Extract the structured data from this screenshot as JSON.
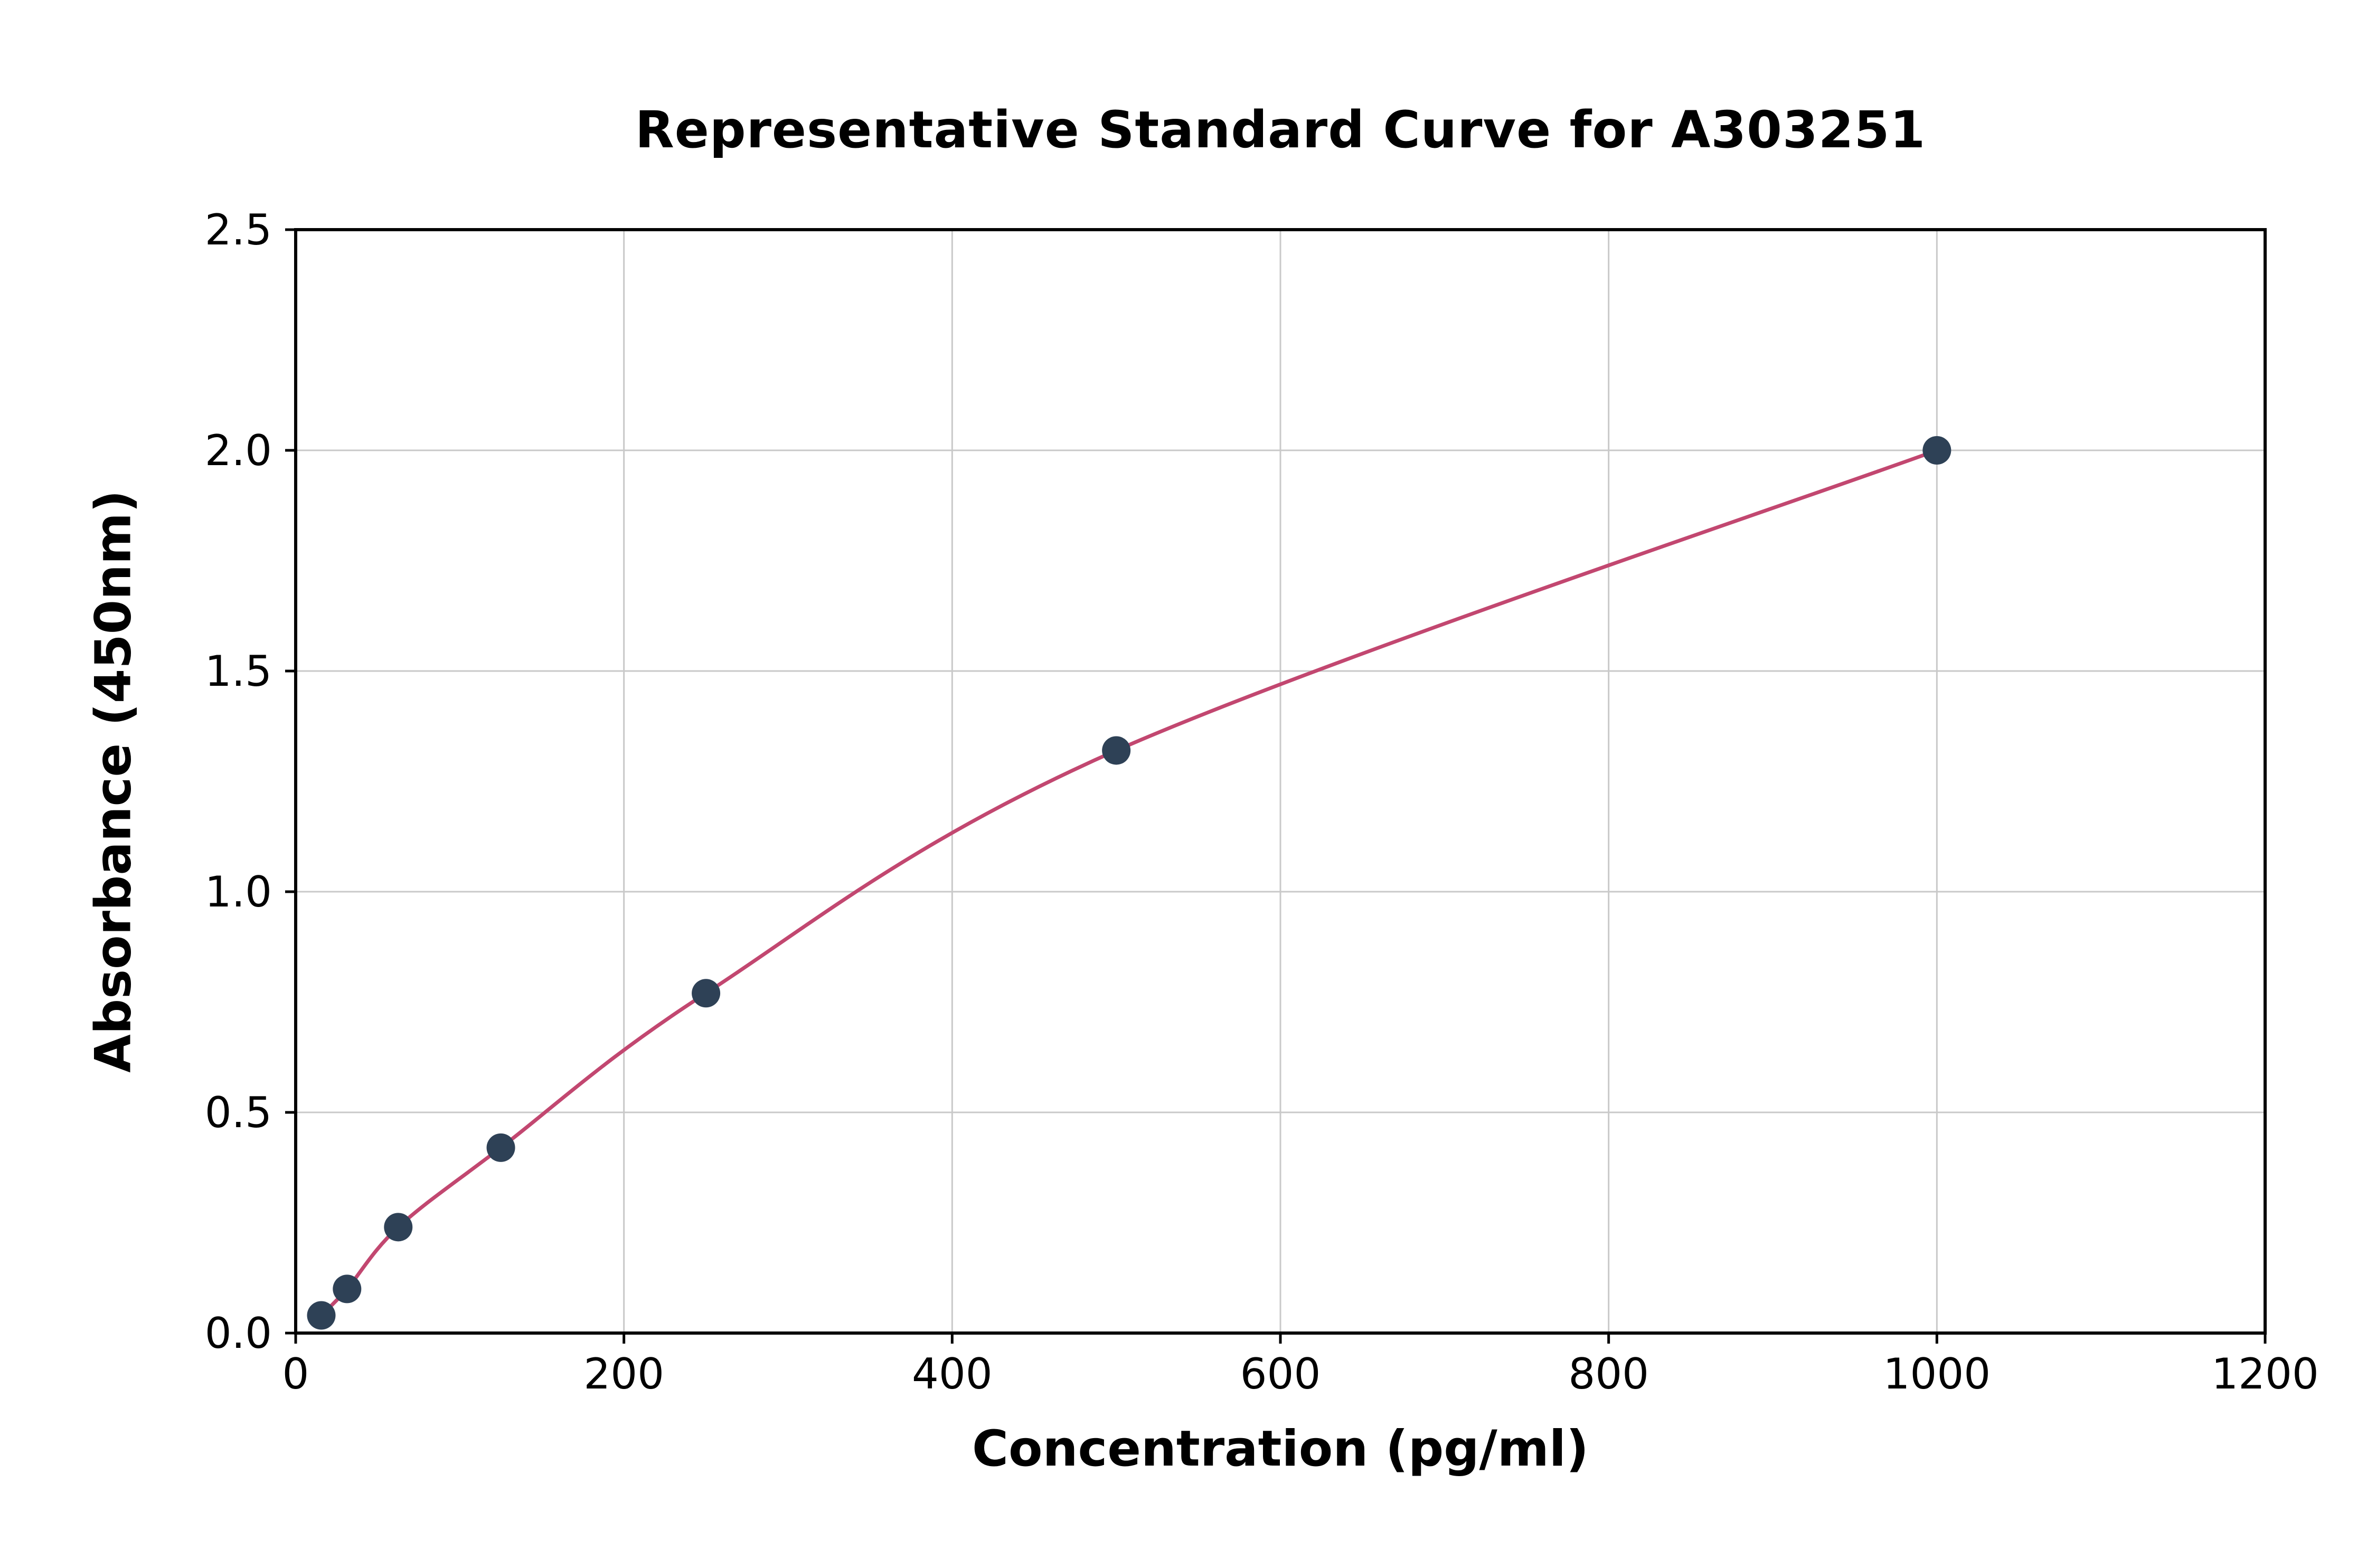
{
  "figure": {
    "background": "#ffffff"
  },
  "chart_data": {
    "type": "scatter",
    "title": "Representative Standard Curve for A303251",
    "xlabel": "Concentration (pg/ml)",
    "ylabel": "Absorbance (450nm)",
    "x": [
      15.6,
      31.3,
      62.5,
      125,
      250,
      500,
      1000
    ],
    "y": [
      0.04,
      0.1,
      0.24,
      0.42,
      0.77,
      1.32,
      2.0
    ],
    "fit_line": true,
    "xlim": [
      0,
      1200
    ],
    "ylim": [
      0,
      2.5
    ],
    "xticks": [
      0,
      200,
      400,
      600,
      800,
      1000,
      1200
    ],
    "yticks": [
      0,
      0.5,
      1.0,
      1.5,
      2.0,
      2.5
    ],
    "xtick_labels": [
      "0",
      "200",
      "400",
      "600",
      "800",
      "1000",
      "1200"
    ],
    "ytick_labels": [
      "0.0",
      "0.5",
      "1.0",
      "1.5",
      "2.0",
      "2.5"
    ],
    "grid": true,
    "legend": "none",
    "colors": {
      "line": "#c24770",
      "marker": "#2e4156",
      "grid": "#c9c9c9",
      "axis": "#000000",
      "background": "#ffffff"
    }
  }
}
